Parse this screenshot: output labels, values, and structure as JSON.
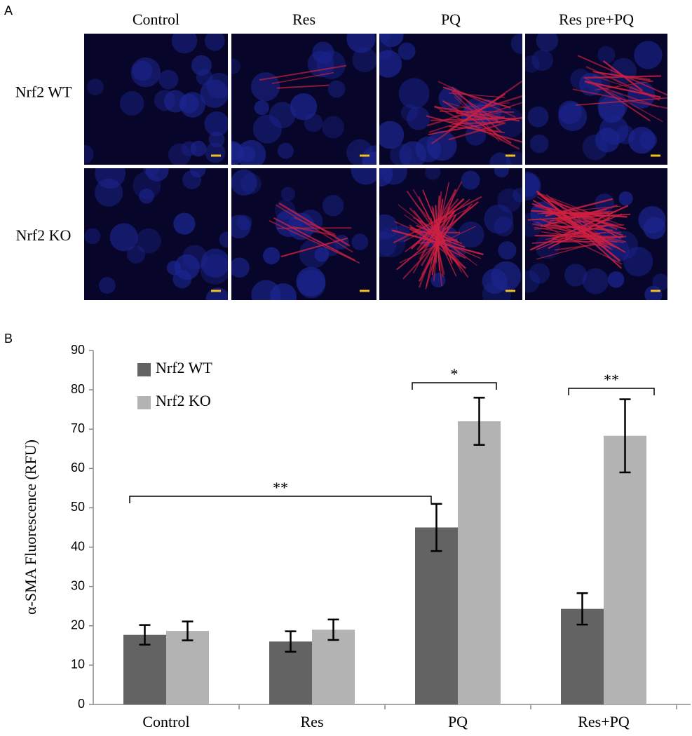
{
  "panel_a": {
    "label": "A",
    "columns": [
      "Control",
      "Res",
      "PQ",
      "Res pre+PQ"
    ],
    "rows": [
      "Nrf2 WT",
      "Nrf2 KO"
    ]
  },
  "chart_data": {
    "type": "bar",
    "panel_label": "B",
    "y_label": "α-SMA Fluorescence (RFU)",
    "categories": [
      "Control",
      "Res",
      "PQ",
      "Res+PQ"
    ],
    "series": [
      {
        "name": "Nrf2 WT",
        "color": "#636363",
        "values": [
          17.7,
          16.0,
          45.0,
          24.3
        ],
        "errors": [
          2.5,
          2.6,
          6.0,
          4.0
        ]
      },
      {
        "name": "Nrf2 KO",
        "color": "#b3b3b3",
        "values": [
          18.7,
          19.0,
          72.0,
          68.3
        ],
        "errors": [
          2.4,
          2.6,
          6.0,
          9.3
        ]
      }
    ],
    "ylim": [
      0,
      90
    ],
    "yticks": [
      0,
      10,
      20,
      30,
      40,
      50,
      60,
      70,
      80,
      90
    ],
    "annotations": [
      {
        "text": "**"
      },
      {
        "text": "*"
      },
      {
        "text": "**"
      }
    ],
    "legend": "upper left",
    "grid": false
  }
}
